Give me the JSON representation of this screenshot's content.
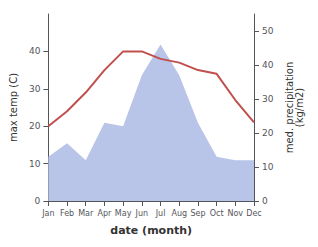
{
  "chart_data": {
    "type": "line",
    "xlabel": "date (month)",
    "ylabel": "max temp (C)",
    "y2label": "med. precipitation\n(kg/m2)",
    "categories": [
      "Jan",
      "Feb",
      "Mar",
      "Apr",
      "May",
      "Jun",
      "Jul",
      "Aug",
      "Sep",
      "Oct",
      "Nov",
      "Dec"
    ],
    "series": [
      {
        "type": "area",
        "axis": "y2",
        "color": "#b8c4e8",
        "values": [
          13,
          17,
          12,
          23,
          22,
          37,
          46,
          37,
          23,
          13,
          12,
          12
        ]
      },
      {
        "type": "line",
        "color": "#c0504d",
        "values": [
          20,
          24,
          29,
          35,
          40,
          40,
          38,
          37,
          35,
          34,
          27,
          21
        ]
      }
    ],
    "ylim": [
      0,
      50
    ],
    "yticks": [
      0,
      10,
      20,
      30,
      40
    ],
    "y2lim": [
      0,
      55
    ],
    "y2ticks": [
      0,
      10,
      20,
      30,
      40,
      50
    ],
    "grid": false
  }
}
